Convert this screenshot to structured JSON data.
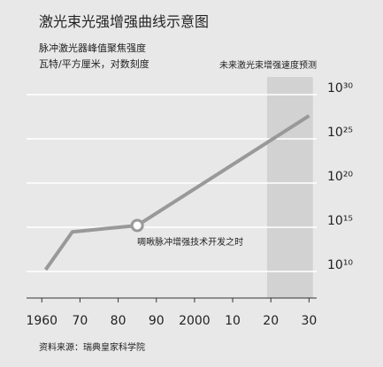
{
  "chart_data": {
    "type": "line",
    "title": "激光束光强增强曲线示意图",
    "subtitle": "脉冲激光器峰值聚焦强度",
    "y_label": "瓦特/平方厘米，对数刻度",
    "source": "资料来源：瑞典皇家科学院",
    "x": [
      1961,
      1968,
      1985,
      2030
    ],
    "series": [
      {
        "name": null,
        "color": "#999999",
        "values": [
          16000000000,
          300000000000000,
          1600000000000000,
          4e+27
        ]
      }
    ],
    "annotation": {
      "text": "啁啾脉冲增强技术开发之时",
      "x": 1985
    },
    "forecast": {
      "label": "未来激光束增强速度预测",
      "span": [
        2019,
        2031
      ],
      "color": "#d2d2d2"
    },
    "xlim": [
      1956,
      2032
    ],
    "xticks": [
      {
        "value": 1960,
        "label": "1960"
      },
      {
        "value": 1970,
        "label": "70"
      },
      {
        "value": 1980,
        "label": "80"
      },
      {
        "value": 1990,
        "label": "90"
      },
      {
        "value": 2000,
        "label": "2000"
      },
      {
        "value": 2010,
        "label": "10"
      },
      {
        "value": 2020,
        "label": "20"
      },
      {
        "value": 2030,
        "label": "30"
      }
    ],
    "ylim": [
      10000000.0,
      1e+32
    ],
    "yticks": [
      {
        "value": 10000000000.0,
        "label": "10¹⁰"
      },
      {
        "value": 1000000000000000.0,
        "label": "10¹⁵"
      },
      {
        "value": 1e+20,
        "label": "10²⁰"
      },
      {
        "value": 1e+25,
        "label": "10²⁵"
      },
      {
        "value": 1e+30,
        "label": "10³⁰"
      }
    ],
    "log_y": true,
    "grid": true
  }
}
